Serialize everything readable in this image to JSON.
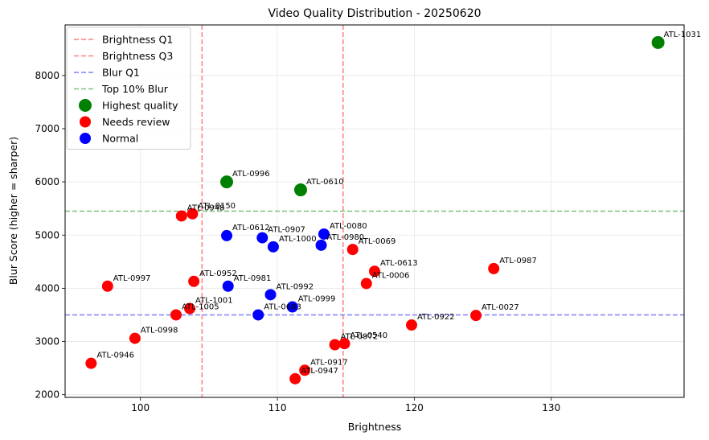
{
  "chart_data": {
    "type": "scatter",
    "title": "Video Quality Distribution - 20250620",
    "xlabel": "Brightness",
    "ylabel": "Blur Score (higher = sharper)",
    "xlim": [
      94.5,
      139.7
    ],
    "ylim": [
      1950,
      8950
    ],
    "xticks": [
      100,
      110,
      120,
      130
    ],
    "yticks": [
      2000,
      3000,
      4000,
      5000,
      6000,
      7000,
      8000
    ],
    "grid": true,
    "legend_position": "top-left",
    "reference_lines": [
      {
        "name": "Brightness Q1",
        "orientation": "vertical",
        "value": 104.5,
        "color": "#ff7f7f"
      },
      {
        "name": "Brightness Q3",
        "orientation": "vertical",
        "value": 114.8,
        "color": "#ff7f7f"
      },
      {
        "name": "Blur Q1",
        "orientation": "horizontal",
        "value": 3500,
        "color": "#7f7fff"
      },
      {
        "name": "Top 10% Blur",
        "orientation": "horizontal",
        "value": 5450,
        "color": "#7fbf7f"
      }
    ],
    "series": [
      {
        "name": "Highest quality",
        "color": "#008000",
        "size": 8,
        "points": [
          {
            "label": "ATL-1031",
            "x": 137.8,
            "y": 8620
          },
          {
            "label": "ATL-0996",
            "x": 106.3,
            "y": 6000
          },
          {
            "label": "ATL-0610",
            "x": 111.7,
            "y": 5850
          }
        ]
      },
      {
        "name": "Needs review",
        "color": "#ff0000",
        "size": 7,
        "points": [
          {
            "label": "ATL-0948",
            "x": 103.0,
            "y": 5360
          },
          {
            "label": "ATL-0150",
            "x": 103.8,
            "y": 5400
          },
          {
            "label": "ATL-0069",
            "x": 115.5,
            "y": 4730
          },
          {
            "label": "ATL-0613",
            "x": 117.1,
            "y": 4320
          },
          {
            "label": "ATL-0006",
            "x": 116.5,
            "y": 4090
          },
          {
            "label": "ATL-0987",
            "x": 125.8,
            "y": 4370
          },
          {
            "label": "ATL-0997",
            "x": 97.6,
            "y": 4040
          },
          {
            "label": "ATL-0952",
            "x": 103.9,
            "y": 4130
          },
          {
            "label": "ATL-1001",
            "x": 103.6,
            "y": 3620
          },
          {
            "label": "ATL-1005",
            "x": 102.6,
            "y": 3500
          },
          {
            "label": "ATL-0998",
            "x": 99.6,
            "y": 3060
          },
          {
            "label": "ATL-0946",
            "x": 96.4,
            "y": 2590
          },
          {
            "label": "ATL-0922",
            "x": 119.8,
            "y": 3310
          },
          {
            "label": "ATL-0027",
            "x": 124.5,
            "y": 3490
          },
          {
            "label": "ATL-0972",
            "x": 114.2,
            "y": 2940
          },
          {
            "label": "ATL-0540",
            "x": 114.9,
            "y": 2960
          },
          {
            "label": "ATL-0917",
            "x": 112.0,
            "y": 2460
          },
          {
            "label": "ATL-0947",
            "x": 111.3,
            "y": 2300
          }
        ]
      },
      {
        "name": "Normal",
        "color": "#0000ff",
        "size": 7,
        "points": [
          {
            "label": "ATL-0612",
            "x": 106.3,
            "y": 4990
          },
          {
            "label": "ATL-0907",
            "x": 108.9,
            "y": 4950
          },
          {
            "label": "ATL-1000",
            "x": 109.7,
            "y": 4780
          },
          {
            "label": "ATL-0080",
            "x": 113.4,
            "y": 5020
          },
          {
            "label": "ATL-0980",
            "x": 113.2,
            "y": 4810
          },
          {
            "label": "ATL-0981",
            "x": 106.4,
            "y": 4040
          },
          {
            "label": "ATL-0992",
            "x": 109.5,
            "y": 3880
          },
          {
            "label": "ATL-0999",
            "x": 111.1,
            "y": 3650
          },
          {
            "label": "ATL-0683",
            "x": 108.6,
            "y": 3500
          }
        ]
      }
    ]
  }
}
